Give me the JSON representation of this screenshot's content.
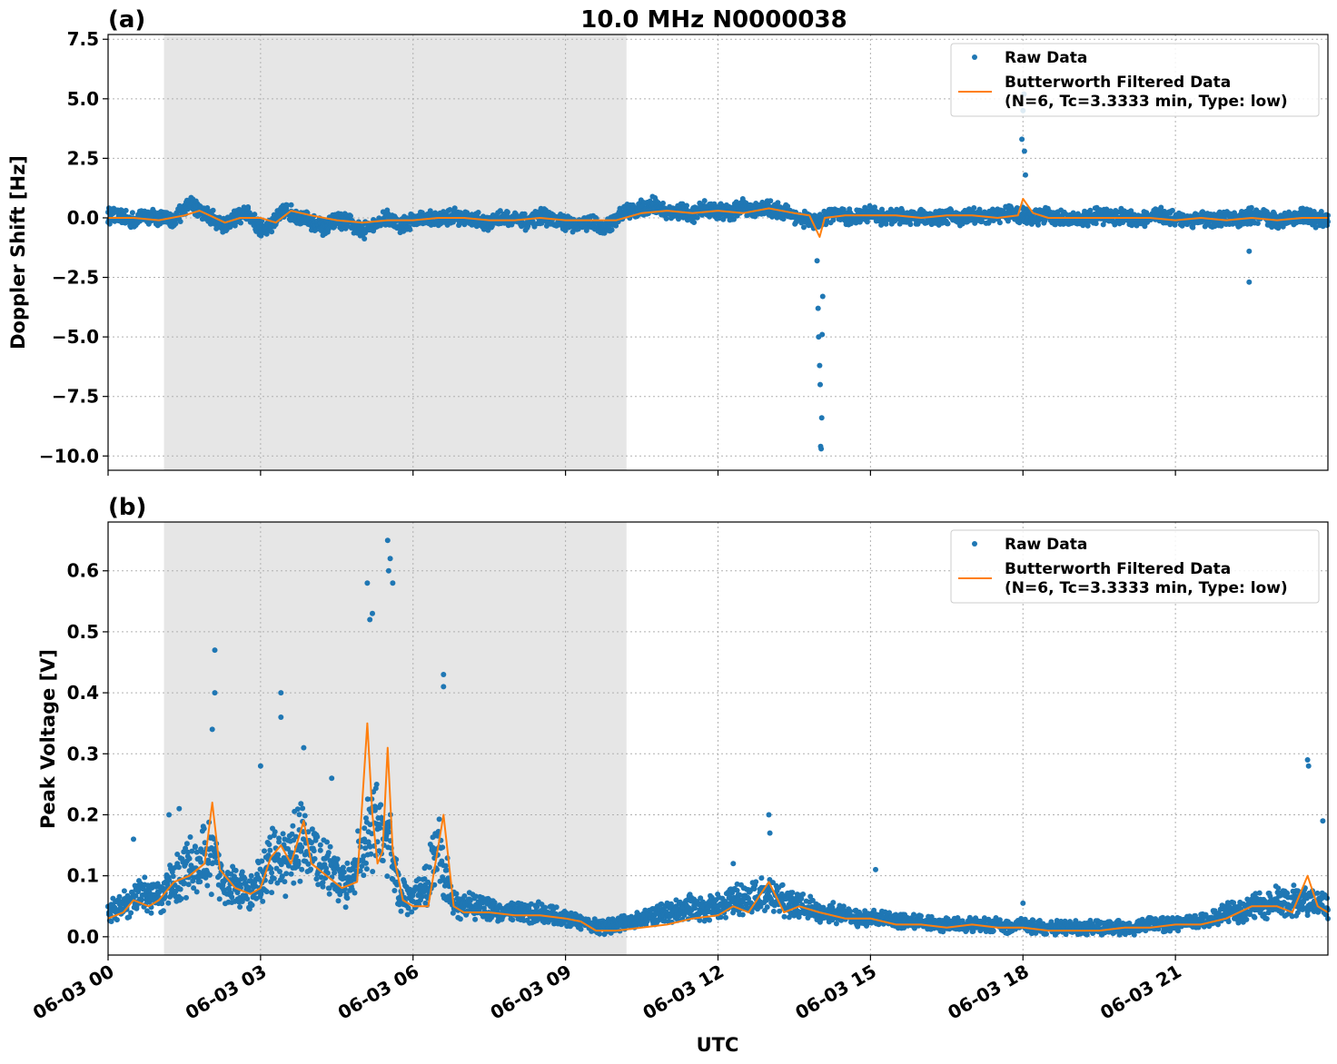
{
  "figure": {
    "title": "10.0 MHz N0000038",
    "xlabel": "UTC"
  },
  "chart_data": [
    {
      "type": "scatter",
      "panel_label": "(a)",
      "ylabel": "Doppler Shift [Hz]",
      "ylim": [
        -10.6,
        7.7
      ],
      "yticks": [
        7.5,
        5.0,
        2.5,
        0.0,
        -2.5,
        -5.0,
        -7.5,
        -10.0
      ],
      "ytick_labels": [
        "7.5",
        "5.0",
        "2.5",
        "0.0",
        "−2.5",
        "−5.0",
        "−7.5",
        "−10.0"
      ],
      "xlim_hours": [
        0,
        24
      ],
      "xticks_hours": [
        0,
        3,
        6,
        9,
        12,
        15,
        18,
        21
      ],
      "xtick_labels": [
        "06-03 00",
        "06-03 03",
        "06-03 06",
        "06-03 09",
        "06-03 12",
        "06-03 15",
        "06-03 18",
        "06-03 21"
      ],
      "shaded_region_hours": [
        1.1,
        10.2
      ],
      "grid": true,
      "legend_position": "top-right",
      "legend": {
        "raw": "Raw Data",
        "filtered_line1": "Butterworth Filtered Data",
        "filtered_line2": "(N=6, Tc=3.3333 min, Type: low)"
      },
      "series": [
        {
          "name": "Raw Data",
          "kind": "points",
          "color": "#1f77b4",
          "x": [
            0,
            0.25,
            0.5,
            0.75,
            1.0,
            1.25,
            1.5,
            1.6,
            1.75,
            2.0,
            2.25,
            2.5,
            2.75,
            3.0,
            3.25,
            3.5,
            3.75,
            4.0,
            4.25,
            4.5,
            4.75,
            5.0,
            5.25,
            5.5,
            5.75,
            6.0,
            6.25,
            6.5,
            6.75,
            7.0,
            7.25,
            7.5,
            7.75,
            8.0,
            8.25,
            8.5,
            8.75,
            9.0,
            9.25,
            9.5,
            9.75,
            10.0,
            10.25,
            10.5,
            10.75,
            11.0,
            11.25,
            11.5,
            11.75,
            12.0,
            12.25,
            12.5,
            12.75,
            13.0,
            13.25,
            13.5,
            13.75,
            14.0,
            14.25,
            14.5,
            14.75,
            15.0,
            15.25,
            15.5,
            15.75,
            16.0,
            16.25,
            16.5,
            16.75,
            17.0,
            17.25,
            17.5,
            17.75,
            18.0,
            18.25,
            18.5,
            18.75,
            19.0,
            19.25,
            19.5,
            19.75,
            20.0,
            20.25,
            20.5,
            20.75,
            21.0,
            21.25,
            21.5,
            21.75,
            22.0,
            22.25,
            22.5,
            22.75,
            23.0,
            23.25,
            23.5,
            23.75,
            24.0
          ],
          "y": [
            0.1,
            0.0,
            -0.1,
            0.1,
            0.0,
            -0.1,
            0.3,
            0.6,
            0.4,
            0.1,
            -0.3,
            0.0,
            0.2,
            -0.5,
            -0.2,
            0.3,
            0.1,
            -0.2,
            -0.4,
            -0.1,
            -0.2,
            -0.6,
            -0.2,
            0.0,
            -0.3,
            -0.1,
            0.0,
            -0.1,
            0.1,
            0.0,
            -0.1,
            -0.2,
            0.0,
            -0.1,
            -0.2,
            0.1,
            -0.1,
            -0.2,
            -0.3,
            -0.2,
            -0.5,
            0.0,
            0.3,
            0.4,
            0.6,
            0.2,
            0.3,
            0.1,
            0.4,
            0.3,
            0.2,
            0.5,
            0.3,
            0.4,
            0.3,
            0.1,
            -0.1,
            -0.2,
            0.2,
            0.0,
            0.1,
            0.2,
            0.0,
            0.1,
            0.0,
            0.1,
            0.0,
            0.1,
            0.0,
            0.1,
            0.0,
            0.1,
            0.2,
            0.1,
            0.0,
            0.1,
            0.0,
            -0.1,
            0.0,
            0.1,
            0.0,
            0.1,
            -0.1,
            0.0,
            0.1,
            0.0,
            -0.1,
            0.0,
            -0.2,
            0.0,
            -0.1,
            0.1,
            0.0,
            -0.1,
            0.0,
            0.1,
            -0.1,
            0.0
          ],
          "band_halfwidth": 0.35,
          "outliers_x": [
            13.95,
            13.97,
            13.98,
            14.0,
            14.01,
            14.02,
            14.03,
            14.04,
            14.05,
            14.06,
            17.98,
            18.0,
            18.02,
            18.03,
            18.05,
            22.45,
            22.45
          ],
          "outliers_y": [
            -1.8,
            -3.8,
            -5.0,
            -6.2,
            -7.0,
            -9.6,
            -9.7,
            -8.4,
            -4.9,
            -3.3,
            3.3,
            4.5,
            5.2,
            2.8,
            1.8,
            -1.4,
            -2.7
          ]
        },
        {
          "name": "Butterworth Filtered Data (N=6, Tc=3.3333 min, Type: low)",
          "kind": "line",
          "color": "#ff7f0e",
          "x": [
            0,
            0.5,
            1.0,
            1.5,
            1.8,
            2.0,
            2.3,
            2.6,
            3.0,
            3.3,
            3.6,
            4.0,
            4.5,
            5.0,
            5.5,
            6.0,
            6.5,
            7.0,
            7.5,
            8.0,
            8.5,
            9.0,
            9.5,
            10.0,
            10.5,
            11.0,
            11.5,
            12.0,
            12.5,
            13.0,
            13.5,
            13.8,
            14.0,
            14.1,
            14.5,
            15.0,
            15.5,
            16.0,
            16.5,
            17.0,
            17.5,
            17.9,
            18.0,
            18.2,
            18.5,
            19.0,
            19.5,
            20.0,
            20.5,
            21.0,
            21.5,
            22.0,
            22.5,
            23.0,
            23.5,
            24.0
          ],
          "y": [
            0.0,
            0.0,
            -0.1,
            0.1,
            0.3,
            0.1,
            -0.2,
            0.0,
            0.0,
            -0.2,
            0.3,
            0.1,
            -0.1,
            -0.2,
            -0.1,
            -0.1,
            0.0,
            0.0,
            -0.1,
            -0.1,
            0.0,
            -0.1,
            -0.1,
            -0.1,
            0.2,
            0.3,
            0.2,
            0.3,
            0.2,
            0.4,
            0.2,
            0.1,
            -0.8,
            0.0,
            0.1,
            0.1,
            0.1,
            0.0,
            0.1,
            0.1,
            0.0,
            0.1,
            0.8,
            0.2,
            0.0,
            0.0,
            0.0,
            0.0,
            0.0,
            -0.1,
            0.0,
            -0.1,
            0.0,
            -0.1,
            0.0,
            0.0
          ]
        }
      ]
    },
    {
      "type": "scatter",
      "panel_label": "(b)",
      "ylabel": "Peak Voltage [V]",
      "ylim": [
        -0.03,
        0.68
      ],
      "yticks": [
        0.0,
        0.1,
        0.2,
        0.3,
        0.4,
        0.5,
        0.6
      ],
      "ytick_labels": [
        "0.0",
        "0.1",
        "0.2",
        "0.3",
        "0.4",
        "0.5",
        "0.6"
      ],
      "xlim_hours": [
        0,
        24
      ],
      "xticks_hours": [
        0,
        3,
        6,
        9,
        12,
        15,
        18,
        21
      ],
      "xtick_labels": [
        "06-03 00",
        "06-03 03",
        "06-03 06",
        "06-03 09",
        "06-03 12",
        "06-03 15",
        "06-03 18",
        "06-03 21"
      ],
      "shaded_region_hours": [
        1.1,
        10.2
      ],
      "grid": true,
      "legend_position": "top-right",
      "legend": {
        "raw": "Raw Data",
        "filtered_line1": "Butterworth Filtered Data",
        "filtered_line2": "(N=6, Tc=3.3333 min, Type: low)"
      },
      "series": [
        {
          "name": "Raw Data",
          "kind": "points",
          "color": "#1f77b4",
          "x": [
            0,
            0.25,
            0.5,
            0.75,
            1.0,
            1.25,
            1.5,
            1.75,
            2.0,
            2.25,
            2.5,
            2.75,
            3.0,
            3.25,
            3.5,
            3.75,
            4.0,
            4.25,
            4.5,
            4.75,
            5.0,
            5.25,
            5.5,
            5.75,
            6.0,
            6.25,
            6.5,
            6.75,
            7.0,
            7.25,
            7.5,
            7.75,
            8.0,
            8.25,
            8.5,
            8.75,
            9.0,
            9.25,
            9.5,
            9.75,
            10.0,
            10.25,
            10.5,
            10.75,
            11.0,
            11.25,
            11.5,
            11.75,
            12.0,
            12.25,
            12.5,
            12.75,
            13.0,
            13.25,
            13.5,
            13.75,
            14.0,
            14.25,
            14.5,
            14.75,
            15.0,
            15.25,
            15.5,
            15.75,
            16.0,
            16.25,
            16.5,
            16.75,
            17.0,
            17.25,
            17.5,
            17.75,
            18.0,
            18.25,
            18.5,
            18.75,
            19.0,
            19.25,
            19.5,
            19.75,
            20.0,
            20.25,
            20.5,
            20.75,
            21.0,
            21.25,
            21.5,
            21.75,
            22.0,
            22.25,
            22.5,
            22.75,
            23.0,
            23.25,
            23.5,
            23.75,
            24.0
          ],
          "y": [
            0.04,
            0.05,
            0.06,
            0.07,
            0.06,
            0.09,
            0.11,
            0.12,
            0.13,
            0.1,
            0.08,
            0.07,
            0.09,
            0.13,
            0.12,
            0.16,
            0.14,
            0.11,
            0.1,
            0.08,
            0.14,
            0.18,
            0.16,
            0.07,
            0.06,
            0.08,
            0.16,
            0.06,
            0.05,
            0.05,
            0.05,
            0.04,
            0.04,
            0.04,
            0.04,
            0.035,
            0.03,
            0.025,
            0.02,
            0.015,
            0.02,
            0.025,
            0.03,
            0.035,
            0.04,
            0.045,
            0.05,
            0.045,
            0.05,
            0.06,
            0.06,
            0.065,
            0.07,
            0.06,
            0.05,
            0.05,
            0.04,
            0.04,
            0.035,
            0.03,
            0.03,
            0.03,
            0.025,
            0.025,
            0.025,
            0.02,
            0.02,
            0.02,
            0.02,
            0.02,
            0.02,
            0.015,
            0.02,
            0.015,
            0.015,
            0.015,
            0.015,
            0.015,
            0.015,
            0.015,
            0.015,
            0.015,
            0.02,
            0.02,
            0.02,
            0.025,
            0.025,
            0.03,
            0.04,
            0.04,
            0.05,
            0.05,
            0.06,
            0.06,
            0.06,
            0.05,
            0.05
          ],
          "band_halfwidth_frac": 0.45,
          "outliers_x": [
            0.5,
            1.2,
            1.4,
            2.1,
            2.1,
            2.05,
            3.0,
            3.4,
            3.4,
            3.85,
            4.4,
            5.1,
            5.15,
            5.2,
            5.5,
            5.55,
            5.6,
            5.52,
            6.6,
            6.6,
            13.0,
            13.02,
            12.3,
            15.1,
            18.0,
            23.6,
            23.62,
            23.9
          ],
          "outliers_y": [
            0.16,
            0.2,
            0.21,
            0.47,
            0.4,
            0.34,
            0.28,
            0.4,
            0.36,
            0.31,
            0.26,
            0.58,
            0.52,
            0.53,
            0.65,
            0.62,
            0.58,
            0.6,
            0.43,
            0.41,
            0.2,
            0.17,
            0.12,
            0.11,
            0.055,
            0.29,
            0.28,
            0.19
          ]
        },
        {
          "name": "Butterworth Filtered Data (N=6, Tc=3.3333 min, Type: low)",
          "kind": "line",
          "color": "#ff7f0e",
          "x": [
            0,
            0.3,
            0.5,
            0.8,
            1.0,
            1.3,
            1.6,
            1.9,
            2.05,
            2.2,
            2.5,
            2.8,
            3.0,
            3.2,
            3.4,
            3.6,
            3.85,
            4.0,
            4.3,
            4.6,
            4.9,
            5.1,
            5.2,
            5.3,
            5.4,
            5.5,
            5.6,
            5.8,
            6.0,
            6.3,
            6.6,
            6.8,
            7.0,
            7.5,
            8.0,
            8.5,
            9.0,
            9.3,
            9.6,
            10.0,
            10.5,
            11.0,
            11.5,
            12.0,
            12.3,
            12.6,
            13.0,
            13.3,
            13.6,
            14.0,
            14.5,
            15.0,
            15.5,
            16.0,
            16.5,
            17.0,
            17.5,
            18.0,
            18.5,
            19.0,
            19.5,
            20.0,
            20.5,
            21.0,
            21.5,
            22.0,
            22.5,
            23.0,
            23.3,
            23.6,
            23.8,
            24.0
          ],
          "y": [
            0.03,
            0.04,
            0.06,
            0.05,
            0.06,
            0.09,
            0.1,
            0.12,
            0.22,
            0.11,
            0.08,
            0.07,
            0.08,
            0.13,
            0.15,
            0.12,
            0.19,
            0.12,
            0.1,
            0.08,
            0.09,
            0.35,
            0.2,
            0.12,
            0.14,
            0.31,
            0.14,
            0.06,
            0.05,
            0.05,
            0.2,
            0.05,
            0.04,
            0.04,
            0.035,
            0.035,
            0.03,
            0.025,
            0.01,
            0.01,
            0.015,
            0.02,
            0.03,
            0.035,
            0.05,
            0.04,
            0.09,
            0.04,
            0.05,
            0.04,
            0.03,
            0.03,
            0.02,
            0.02,
            0.015,
            0.02,
            0.015,
            0.015,
            0.01,
            0.01,
            0.01,
            0.015,
            0.015,
            0.02,
            0.02,
            0.03,
            0.05,
            0.05,
            0.04,
            0.1,
            0.05,
            0.04
          ]
        }
      ]
    }
  ]
}
